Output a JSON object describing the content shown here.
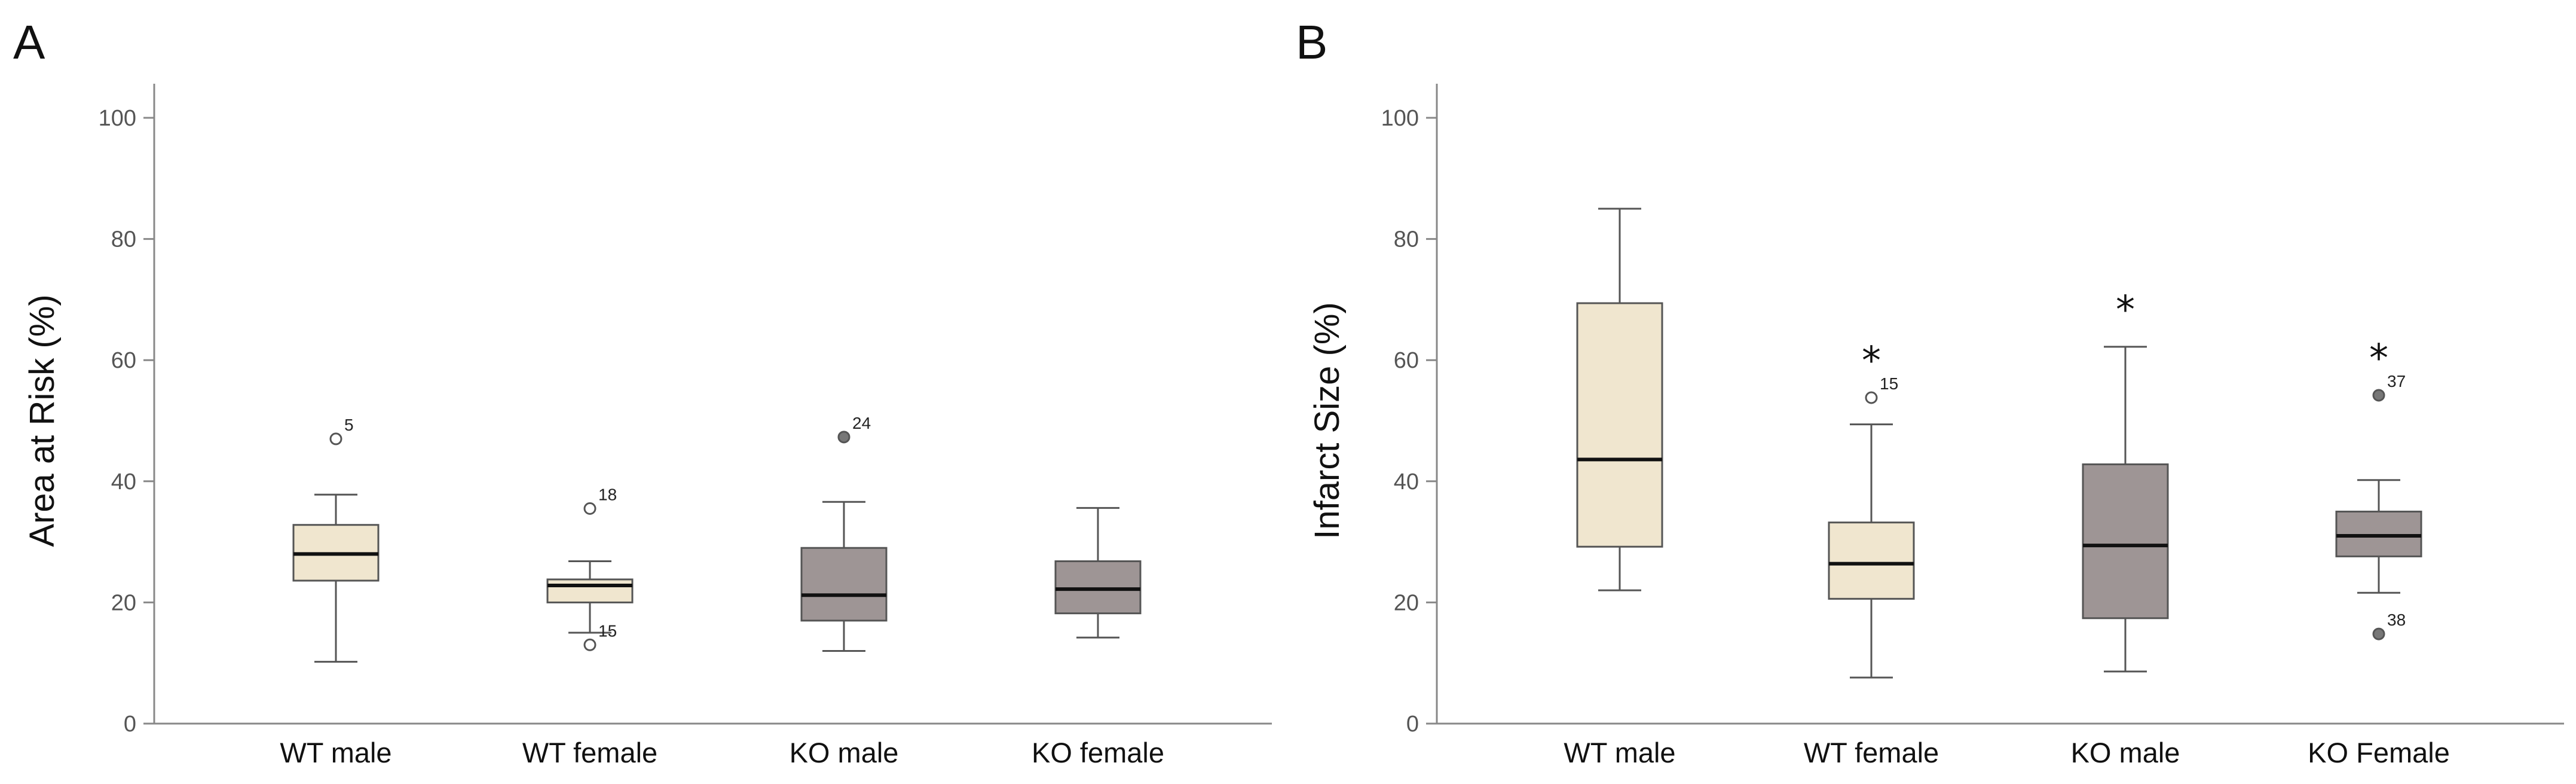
{
  "chart_data": [
    {
      "panel": "A",
      "type": "box",
      "ylabel": "Area at Risk (%)",
      "ylim": [
        0,
        100
      ],
      "yticks": [
        0,
        20,
        40,
        60,
        80,
        100
      ],
      "categories": [
        "WT male",
        "WT female",
        "KO male",
        "KO female"
      ],
      "colors": [
        "#f0e6cf",
        "#f0e6cf",
        "#9e9595",
        "#9e9595"
      ],
      "boxes": [
        {
          "whisker_low": 10.2,
          "q1": 23.6,
          "median": 28.0,
          "q3": 32.8,
          "whisker_high": 37.8,
          "outliers": [
            {
              "value": 47.0,
              "label": "5",
              "filled": false
            }
          ]
        },
        {
          "whisker_low": 15.0,
          "q1": 20.0,
          "median": 22.8,
          "q3": 23.8,
          "whisker_high": 26.8,
          "outliers": [
            {
              "value": 35.5,
              "label": "18",
              "filled": false
            },
            {
              "value": 13.0,
              "label": "15",
              "filled": false
            }
          ]
        },
        {
          "whisker_low": 12.0,
          "q1": 17.0,
          "median": 21.2,
          "q3": 29.0,
          "whisker_high": 36.6,
          "outliers": [
            {
              "value": 47.3,
              "label": "24",
              "filled": true
            }
          ]
        },
        {
          "whisker_low": 14.2,
          "q1": 18.2,
          "median": 22.2,
          "q3": 26.8,
          "whisker_high": 35.6,
          "outliers": []
        }
      ],
      "significance": [
        false,
        false,
        false,
        false
      ]
    },
    {
      "panel": "B",
      "type": "box",
      "ylabel": "Infarct Size (%)",
      "ylim": [
        0,
        100
      ],
      "yticks": [
        0,
        20,
        40,
        60,
        80,
        100
      ],
      "categories": [
        "WT male",
        "WT female",
        "KO male",
        "KO Female"
      ],
      "colors": [
        "#f0e6cf",
        "#f0e6cf",
        "#9e9595",
        "#9e9595"
      ],
      "boxes": [
        {
          "whisker_low": 22.0,
          "q1": 29.2,
          "median": 43.6,
          "q3": 69.4,
          "whisker_high": 85.0,
          "outliers": []
        },
        {
          "whisker_low": 7.6,
          "q1": 20.6,
          "median": 26.4,
          "q3": 33.2,
          "whisker_high": 49.4,
          "outliers": [
            {
              "value": 53.8,
              "label": "15",
              "filled": false
            }
          ]
        },
        {
          "whisker_low": 8.6,
          "q1": 17.4,
          "median": 29.4,
          "q3": 42.8,
          "whisker_high": 62.2,
          "outliers": []
        },
        {
          "whisker_low": 21.6,
          "q1": 27.6,
          "median": 31.0,
          "q3": 35.0,
          "whisker_high": 40.2,
          "outliers": [
            {
              "value": 54.2,
              "label": "37",
              "filled": true
            },
            {
              "value": 14.8,
              "label": "38",
              "filled": true
            }
          ]
        }
      ],
      "significance": [
        false,
        true,
        true,
        true
      ],
      "significance_symbol": "*"
    }
  ]
}
